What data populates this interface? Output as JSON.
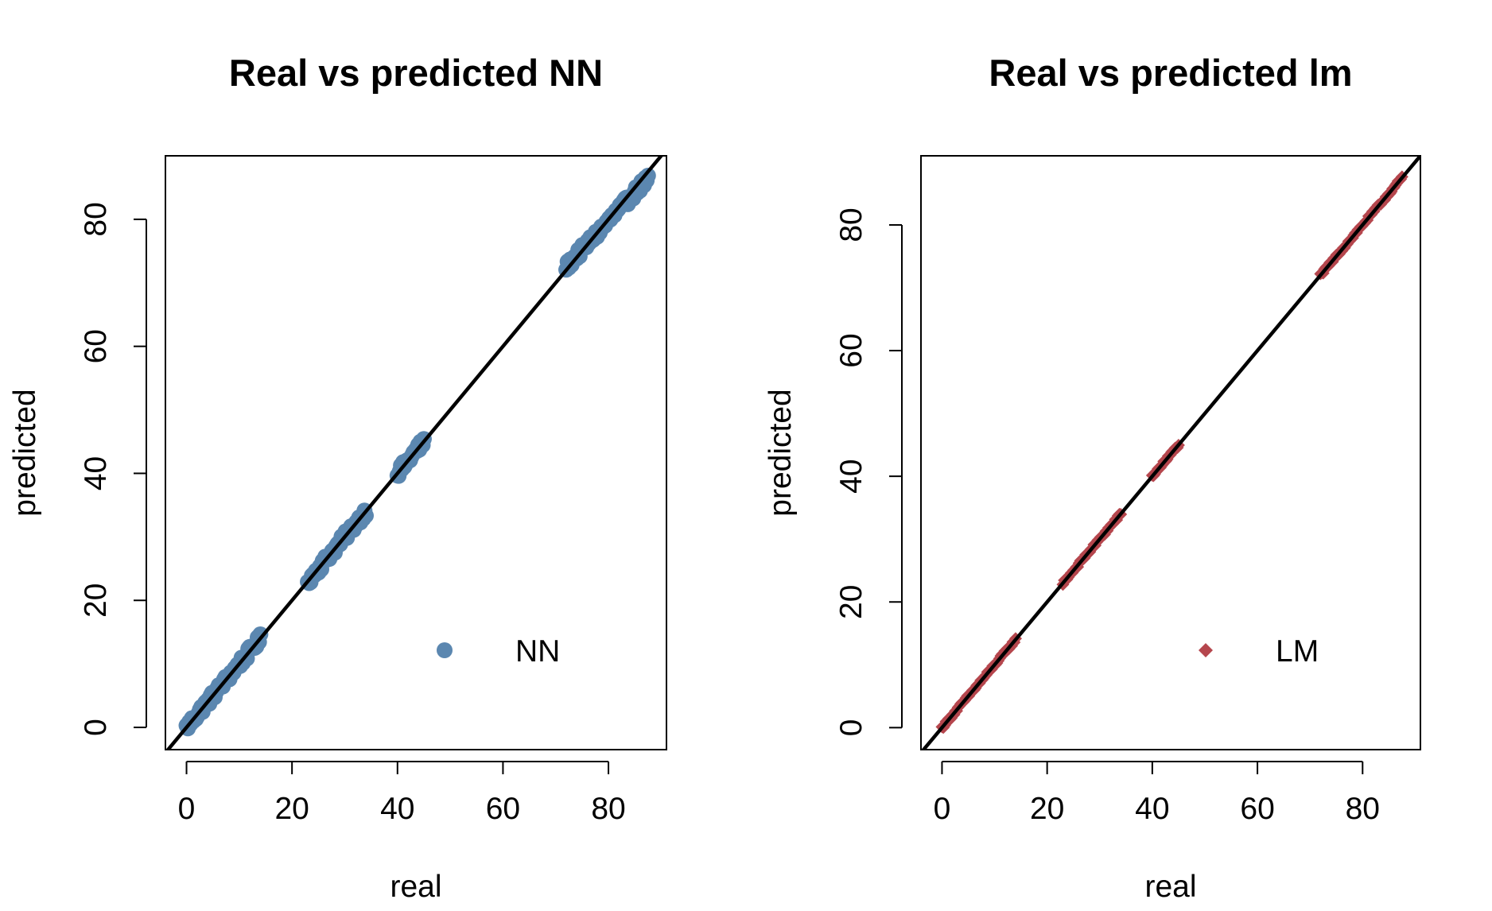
{
  "chart_data": [
    {
      "type": "scatter",
      "title": "Real vs predicted NN",
      "xlabel": "real",
      "ylabel": "predicted",
      "xlim": [
        -4,
        91
      ],
      "ylim": [
        -3.5,
        90
      ],
      "xticks": [
        0,
        20,
        40,
        60,
        80
      ],
      "yticks": [
        0,
        20,
        40,
        60,
        80
      ],
      "grid": false,
      "legend_position": "bottom-right",
      "reference_line": {
        "intercept": 0,
        "slope": 1,
        "color": "#000000"
      },
      "series": [
        {
          "name": "NN",
          "marker": "circle",
          "color": "#5b87b0",
          "clusters": [
            {
              "x_range": [
                0,
                14
              ],
              "y_range": [
                0,
                14
              ]
            },
            {
              "x_range": [
                23,
                34
              ],
              "y_range": [
                23,
                34
              ]
            },
            {
              "x_range": [
                40,
                45
              ],
              "y_range": [
                40,
                45
              ]
            },
            {
              "x_range": [
                72,
                87.5
              ],
              "y_range": [
                72.5,
                86.5
              ]
            }
          ]
        }
      ]
    },
    {
      "type": "scatter",
      "title": "Real vs predicted lm",
      "xlabel": "real",
      "ylabel": "predicted",
      "xlim": [
        -4,
        91
      ],
      "ylim": [
        -3.5,
        91
      ],
      "xticks": [
        0,
        20,
        40,
        60,
        80
      ],
      "yticks": [
        0,
        20,
        40,
        60,
        80
      ],
      "grid": false,
      "legend_position": "bottom-right",
      "reference_line": {
        "intercept": 0,
        "slope": 1,
        "color": "#000000"
      },
      "series": [
        {
          "name": "LM",
          "marker": "diamond",
          "color": "#b5464d",
          "clusters": [
            {
              "x_range": [
                0,
                14
              ],
              "y_range": [
                0,
                14
              ]
            },
            {
              "x_range": [
                23,
                34
              ],
              "y_range": [
                23,
                34
              ]
            },
            {
              "x_range": [
                40,
                45
              ],
              "y_range": [
                40,
                45
              ]
            },
            {
              "x_range": [
                72,
                87.5
              ],
              "y_range": [
                72,
                87.5
              ]
            }
          ]
        }
      ]
    }
  ]
}
